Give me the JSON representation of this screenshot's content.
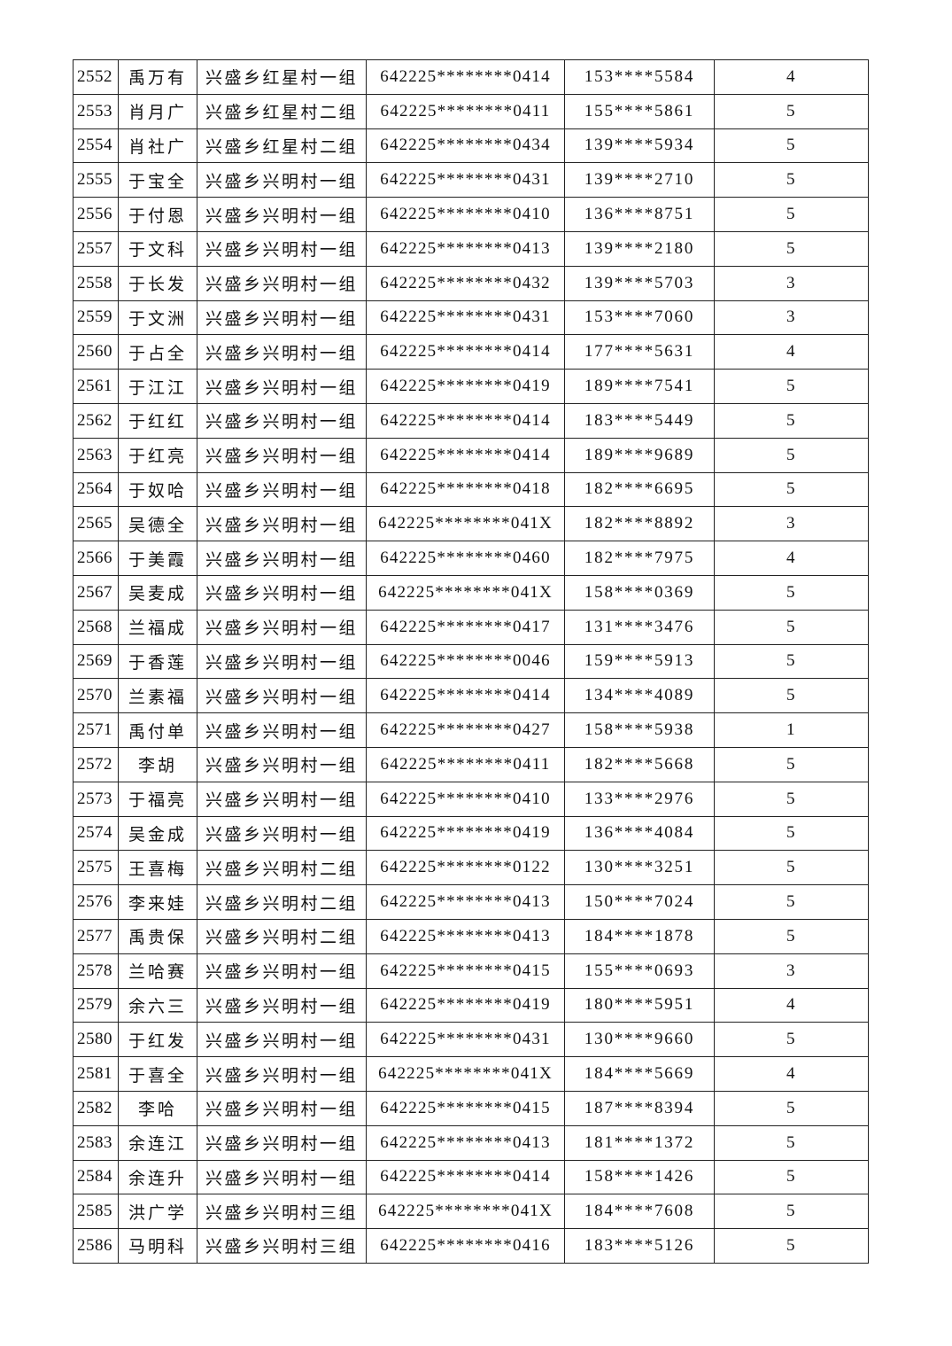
{
  "table": {
    "rows": [
      [
        "2552",
        "禹万有",
        "兴盛乡红星村一组",
        "642225********0414",
        "153****5584",
        "4"
      ],
      [
        "2553",
        "肖月广",
        "兴盛乡红星村二组",
        "642225********0411",
        "155****5861",
        "5"
      ],
      [
        "2554",
        "肖社广",
        "兴盛乡红星村二组",
        "642225********0434",
        "139****5934",
        "5"
      ],
      [
        "2555",
        "于宝全",
        "兴盛乡兴明村一组",
        "642225********0431",
        "139****2710",
        "5"
      ],
      [
        "2556",
        "于付恩",
        "兴盛乡兴明村一组",
        "642225********0410",
        "136****8751",
        "5"
      ],
      [
        "2557",
        "于文科",
        "兴盛乡兴明村一组",
        "642225********0413",
        "139****2180",
        "5"
      ],
      [
        "2558",
        "于长发",
        "兴盛乡兴明村一组",
        "642225********0432",
        "139****5703",
        "3"
      ],
      [
        "2559",
        "于文洲",
        "兴盛乡兴明村一组",
        "642225********0431",
        "153****7060",
        "3"
      ],
      [
        "2560",
        "于占全",
        "兴盛乡兴明村一组",
        "642225********0414",
        "177****5631",
        "4"
      ],
      [
        "2561",
        "于江江",
        "兴盛乡兴明村一组",
        "642225********0419",
        "189****7541",
        "5"
      ],
      [
        "2562",
        "于红红",
        "兴盛乡兴明村一组",
        "642225********0414",
        "183****5449",
        "5"
      ],
      [
        "2563",
        "于红亮",
        "兴盛乡兴明村一组",
        "642225********0414",
        "189****9689",
        "5"
      ],
      [
        "2564",
        "于奴哈",
        "兴盛乡兴明村一组",
        "642225********0418",
        "182****6695",
        "5"
      ],
      [
        "2565",
        "吴德全",
        "兴盛乡兴明村一组",
        "642225********041X",
        "182****8892",
        "3"
      ],
      [
        "2566",
        "于美霞",
        "兴盛乡兴明村一组",
        "642225********0460",
        "182****7975",
        "4"
      ],
      [
        "2567",
        "吴麦成",
        "兴盛乡兴明村一组",
        "642225********041X",
        "158****0369",
        "5"
      ],
      [
        "2568",
        "兰福成",
        "兴盛乡兴明村一组",
        "642225********0417",
        "131****3476",
        "5"
      ],
      [
        "2569",
        "于香莲",
        "兴盛乡兴明村一组",
        "642225********0046",
        "159****5913",
        "5"
      ],
      [
        "2570",
        "兰素福",
        "兴盛乡兴明村一组",
        "642225********0414",
        "134****4089",
        "5"
      ],
      [
        "2571",
        "禹付单",
        "兴盛乡兴明村一组",
        "642225********0427",
        "158****5938",
        "1"
      ],
      [
        "2572",
        "李胡",
        "兴盛乡兴明村一组",
        "642225********0411",
        "182****5668",
        "5"
      ],
      [
        "2573",
        "于福亮",
        "兴盛乡兴明村一组",
        "642225********0410",
        "133****2976",
        "5"
      ],
      [
        "2574",
        "吴金成",
        "兴盛乡兴明村一组",
        "642225********0419",
        "136****4084",
        "5"
      ],
      [
        "2575",
        "王喜梅",
        "兴盛乡兴明村二组",
        "642225********0122",
        "130****3251",
        "5"
      ],
      [
        "2576",
        "李来娃",
        "兴盛乡兴明村二组",
        "642225********0413",
        "150****7024",
        "5"
      ],
      [
        "2577",
        "禹贵保",
        "兴盛乡兴明村二组",
        "642225********0413",
        "184****1878",
        "5"
      ],
      [
        "2578",
        "兰哈赛",
        "兴盛乡兴明村一组",
        "642225********0415",
        "155****0693",
        "3"
      ],
      [
        "2579",
        "余六三",
        "兴盛乡兴明村一组",
        "642225********0419",
        "180****5951",
        "4"
      ],
      [
        "2580",
        "于红发",
        "兴盛乡兴明村一组",
        "642225********0431",
        "130****9660",
        "5"
      ],
      [
        "2581",
        "于喜全",
        "兴盛乡兴明村一组",
        "642225********041X",
        "184****5669",
        "4"
      ],
      [
        "2582",
        "李哈",
        "兴盛乡兴明村一组",
        "642225********0415",
        "187****8394",
        "5"
      ],
      [
        "2583",
        "余连江",
        "兴盛乡兴明村一组",
        "642225********0413",
        "181****1372",
        "5"
      ],
      [
        "2584",
        "余连升",
        "兴盛乡兴明村一组",
        "642225********0414",
        "158****1426",
        "5"
      ],
      [
        "2585",
        "洪广学",
        "兴盛乡兴明村三组",
        "642225********041X",
        "184****7608",
        "5"
      ],
      [
        "2586",
        "马明科",
        "兴盛乡兴明村三组",
        "642225********0416",
        "183****5126",
        "5"
      ]
    ]
  }
}
